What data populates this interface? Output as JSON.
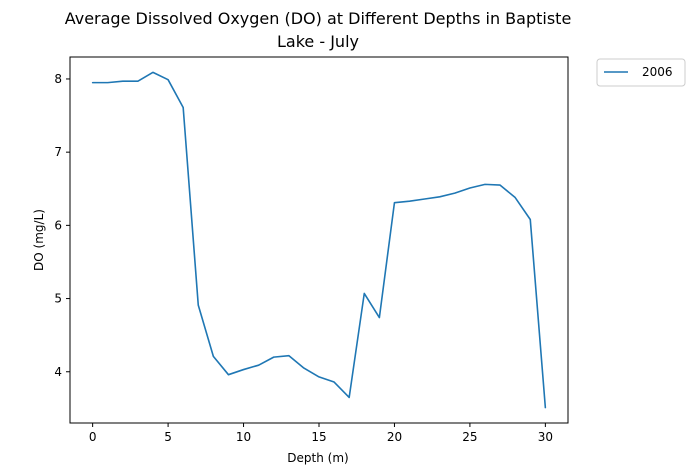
{
  "chart_data": {
    "type": "line",
    "title_line1": "Average Dissolved Oxygen (DO) at Different Depths in Baptiste",
    "title_line2": "Lake - July",
    "xlabel": "Depth (m)",
    "ylabel": "DO (mg/L)",
    "xlim": [
      -1.5,
      31.5
    ],
    "ylim": [
      3.3,
      8.3
    ],
    "xticks": [
      0,
      5,
      10,
      15,
      20,
      25,
      30
    ],
    "yticks": [
      4,
      5,
      6,
      7,
      8
    ],
    "grid": false,
    "legend_position": "outside-top-right",
    "series": [
      {
        "name": "2006",
        "color": "#1f77b4",
        "x": [
          0,
          1,
          2,
          3,
          4,
          5,
          6,
          7,
          8,
          9,
          10,
          11,
          12,
          13,
          14,
          15,
          16,
          17,
          18,
          19,
          20,
          21,
          22,
          23,
          24,
          25,
          26,
          27,
          28,
          29,
          30
        ],
        "y": [
          7.95,
          7.95,
          7.97,
          7.97,
          8.09,
          7.99,
          7.61,
          4.91,
          4.21,
          3.96,
          4.03,
          4.09,
          4.2,
          4.22,
          4.05,
          3.93,
          3.86,
          3.65,
          5.07,
          4.74,
          6.31,
          6.33,
          6.36,
          6.39,
          6.44,
          6.51,
          6.56,
          6.55,
          6.38,
          6.08,
          3.51
        ]
      }
    ]
  }
}
